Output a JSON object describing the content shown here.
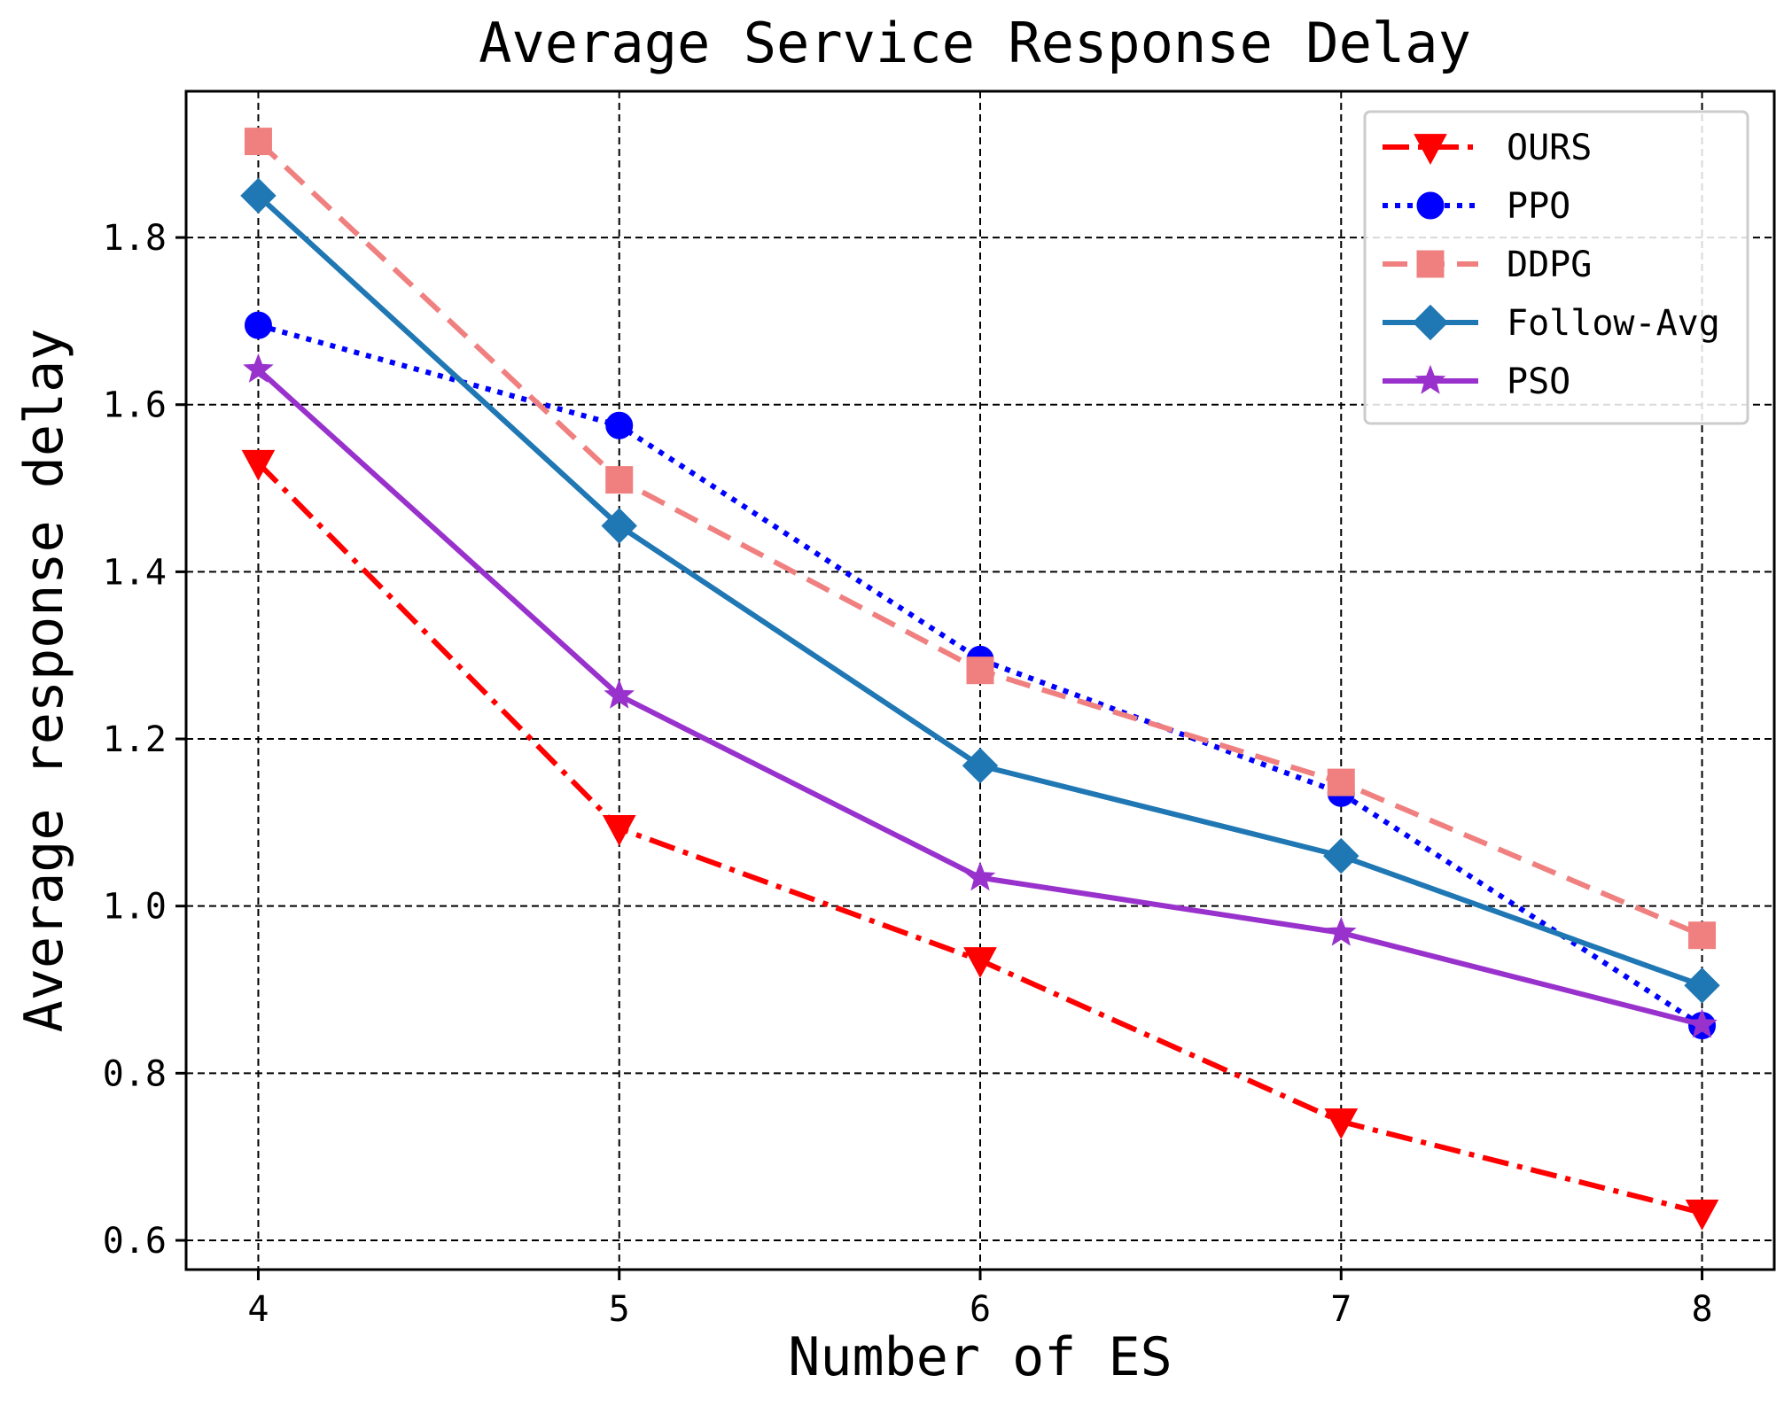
{
  "chart_data": {
    "type": "line",
    "title": "Average Service Response Delay",
    "xlabel": "Number of ES",
    "ylabel": "Average response delay",
    "x": [
      4,
      5,
      6,
      7,
      8
    ],
    "x_tick_labels": [
      "4",
      "5",
      "6",
      "7",
      "8"
    ],
    "xlim": [
      3.8,
      8.2
    ],
    "ylim": [
      0.565,
      1.975
    ],
    "y_ticks": [
      0.6,
      0.8,
      1.0,
      1.2,
      1.4,
      1.6,
      1.8
    ],
    "y_tick_labels": [
      "0.6",
      "0.8",
      "1.0",
      "1.2",
      "1.4",
      "1.6",
      "1.8"
    ],
    "grid": true,
    "legend_position": "top-right",
    "series": [
      {
        "name": "OURS",
        "color": "#ff0000",
        "line_style": "dashdot",
        "marker": "triangle-down",
        "values": [
          1.53,
          1.093,
          0.935,
          0.742,
          0.633
        ]
      },
      {
        "name": "PPO",
        "color": "#0000ff",
        "line_style": "dotted",
        "marker": "circle",
        "values": [
          1.695,
          1.575,
          1.295,
          1.135,
          0.857
        ]
      },
      {
        "name": "DDPG",
        "color": "#f08080",
        "line_style": "dashed",
        "marker": "square",
        "values": [
          1.915,
          1.51,
          1.282,
          1.148,
          0.965
        ]
      },
      {
        "name": "Follow-Avg",
        "color": "#1f77b4",
        "line_style": "solid",
        "marker": "diamond",
        "values": [
          1.85,
          1.455,
          1.168,
          1.06,
          0.905
        ]
      },
      {
        "name": "PSO",
        "color": "#9932cc",
        "line_style": "solid",
        "marker": "star",
        "values": [
          1.642,
          1.252,
          1.034,
          0.968,
          0.858
        ]
      }
    ]
  }
}
